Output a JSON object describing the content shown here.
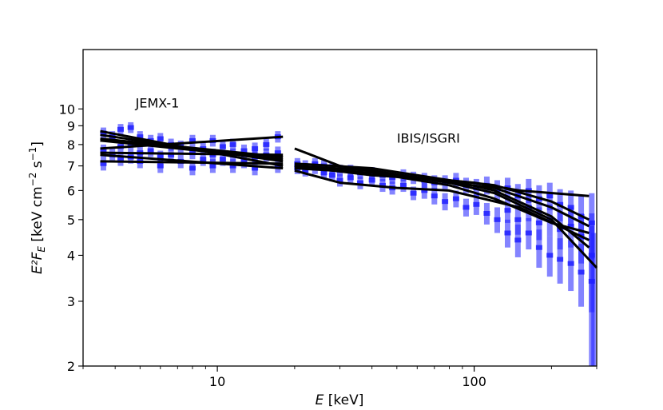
{
  "chart_data": {
    "type": "scatter",
    "xlabel_var": "E",
    "xlabel_unit": " [keV]",
    "ylabel_var": "E²F",
    "ylabel_sub": "E",
    "ylabel_unit_pre": " [keV cm",
    "ylabel_exp1": "−2",
    "ylabel_mid": " s",
    "ylabel_exp2": "−1",
    "ylabel_end": "]",
    "x_scale": "log",
    "y_scale": "log",
    "xlim": [
      3.0,
      300
    ],
    "ylim": [
      2.0,
      14.5
    ],
    "x_ticks": [
      {
        "value": 10,
        "label": "10"
      },
      {
        "value": 100,
        "label": "100"
      }
    ],
    "y_ticks": [
      {
        "value": 2,
        "label": "2"
      },
      {
        "value": 3,
        "label": "3"
      },
      {
        "value": 4,
        "label": "4"
      },
      {
        "value": 5,
        "label": "5"
      },
      {
        "value": 6,
        "label": "6"
      },
      {
        "value": 7,
        "label": "7"
      },
      {
        "value": 8,
        "label": "8"
      },
      {
        "value": 9,
        "label": "9"
      },
      {
        "value": 10,
        "label": "10"
      }
    ],
    "annotations": [
      {
        "text": "JEMX-1",
        "x": 4.8,
        "y": 10.1
      },
      {
        "text": "IBIS/ISGRI",
        "x": 50,
        "y": 8.1
      }
    ],
    "data_color": "#1f1fff",
    "model_color": "#000000",
    "model_lines": [
      {
        "x": [
          3.5,
          18
        ],
        "y": [
          8.7,
          7.0
        ]
      },
      {
        "x": [
          3.5,
          18
        ],
        "y": [
          8.5,
          7.2
        ]
      },
      {
        "x": [
          3.5,
          18
        ],
        "y": [
          8.3,
          7.4
        ]
      },
      {
        "x": [
          3.5,
          18
        ],
        "y": [
          8.2,
          7.3
        ]
      },
      {
        "x": [
          3.5,
          18
        ],
        "y": [
          7.8,
          8.4
        ]
      },
      {
        "x": [
          3.5,
          18
        ],
        "y": [
          7.6,
          7.5
        ]
      },
      {
        "x": [
          3.5,
          18
        ],
        "y": [
          7.2,
          7.1
        ]
      },
      {
        "x": [
          3.5,
          18
        ],
        "y": [
          7.5,
          6.9
        ]
      },
      {
        "x": [
          20,
          30,
          60,
          100,
          150,
          280
        ],
        "y": [
          7.8,
          7.0,
          6.5,
          6.3,
          6.0,
          5.8
        ]
      },
      {
        "x": [
          20,
          40,
          80,
          120,
          200,
          300
        ],
        "y": [
          7.0,
          6.8,
          6.3,
          5.9,
          5.0,
          3.7
        ]
      },
      {
        "x": [
          20,
          40,
          80,
          120,
          200,
          280
        ],
        "y": [
          7.1,
          6.9,
          6.4,
          6.0,
          5.1,
          4.2
        ]
      },
      {
        "x": [
          20,
          40,
          80,
          120,
          200,
          280
        ],
        "y": [
          6.9,
          6.7,
          6.2,
          5.7,
          4.9,
          4.6
        ]
      },
      {
        "x": [
          20,
          40,
          80,
          120,
          200,
          280
        ],
        "y": [
          7.0,
          6.8,
          6.3,
          6.1,
          5.4,
          4.8
        ]
      },
      {
        "x": [
          20,
          30,
          50,
          80,
          150,
          280
        ],
        "y": [
          6.8,
          6.3,
          6.1,
          6.0,
          5.4,
          4.4
        ]
      },
      {
        "x": [
          20,
          40,
          80,
          120,
          200,
          280
        ],
        "y": [
          7.0,
          6.6,
          6.4,
          6.2,
          5.6,
          5.0
        ]
      }
    ],
    "data_points": [
      {
        "x": 3.6,
        "y": 8.6,
        "e": 0.3
      },
      {
        "x": 3.6,
        "y": 7.7,
        "e": 0.3
      },
      {
        "x": 3.6,
        "y": 7.1,
        "e": 0.3
      },
      {
        "x": 3.9,
        "y": 8.4,
        "e": 0.3
      },
      {
        "x": 3.9,
        "y": 7.5,
        "e": 0.3
      },
      {
        "x": 4.2,
        "y": 8.8,
        "e": 0.3
      },
      {
        "x": 4.2,
        "y": 7.9,
        "e": 0.3
      },
      {
        "x": 4.2,
        "y": 7.3,
        "e": 0.3
      },
      {
        "x": 4.6,
        "y": 8.9,
        "e": 0.3
      },
      {
        "x": 4.6,
        "y": 8.0,
        "e": 0.3
      },
      {
        "x": 4.6,
        "y": 7.4,
        "e": 0.3
      },
      {
        "x": 5.0,
        "y": 8.4,
        "e": 0.3
      },
      {
        "x": 5.0,
        "y": 7.6,
        "e": 0.3
      },
      {
        "x": 5.0,
        "y": 7.2,
        "e": 0.3
      },
      {
        "x": 5.5,
        "y": 8.2,
        "e": 0.3
      },
      {
        "x": 5.5,
        "y": 7.7,
        "e": 0.3
      },
      {
        "x": 6.0,
        "y": 8.3,
        "e": 0.3
      },
      {
        "x": 6.0,
        "y": 7.4,
        "e": 0.3
      },
      {
        "x": 6.0,
        "y": 7.0,
        "e": 0.3
      },
      {
        "x": 6.6,
        "y": 8.0,
        "e": 0.3
      },
      {
        "x": 6.6,
        "y": 7.5,
        "e": 0.3
      },
      {
        "x": 7.2,
        "y": 7.9,
        "e": 0.3
      },
      {
        "x": 7.2,
        "y": 7.2,
        "e": 0.3
      },
      {
        "x": 8.0,
        "y": 8.2,
        "e": 0.3
      },
      {
        "x": 8.0,
        "y": 7.6,
        "e": 0.3
      },
      {
        "x": 8.0,
        "y": 6.9,
        "e": 0.3
      },
      {
        "x": 8.8,
        "y": 7.8,
        "e": 0.3
      },
      {
        "x": 8.8,
        "y": 7.3,
        "e": 0.3
      },
      {
        "x": 9.6,
        "y": 8.2,
        "e": 0.3
      },
      {
        "x": 9.6,
        "y": 7.5,
        "e": 0.3
      },
      {
        "x": 9.6,
        "y": 7.0,
        "e": 0.3
      },
      {
        "x": 10.5,
        "y": 7.9,
        "e": 0.3
      },
      {
        "x": 10.5,
        "y": 7.3,
        "e": 0.3
      },
      {
        "x": 11.5,
        "y": 8.0,
        "e": 0.3
      },
      {
        "x": 11.5,
        "y": 7.5,
        "e": 0.3
      },
      {
        "x": 11.5,
        "y": 7.0,
        "e": 0.3
      },
      {
        "x": 12.7,
        "y": 7.7,
        "e": 0.3
      },
      {
        "x": 12.7,
        "y": 7.2,
        "e": 0.3
      },
      {
        "x": 14.0,
        "y": 7.8,
        "e": 0.3
      },
      {
        "x": 14.0,
        "y": 7.4,
        "e": 0.3
      },
      {
        "x": 14.0,
        "y": 6.9,
        "e": 0.3
      },
      {
        "x": 15.5,
        "y": 8.0,
        "e": 0.3
      },
      {
        "x": 15.5,
        "y": 7.5,
        "e": 0.3
      },
      {
        "x": 17.2,
        "y": 8.4,
        "e": 0.3
      },
      {
        "x": 17.2,
        "y": 7.6,
        "e": 0.3
      },
      {
        "x": 17.2,
        "y": 7.0,
        "e": 0.3
      },
      {
        "x": 20.5,
        "y": 7.1,
        "e": 0.25
      },
      {
        "x": 20.5,
        "y": 6.9,
        "e": 0.25
      },
      {
        "x": 22,
        "y": 7.0,
        "e": 0.25
      },
      {
        "x": 22,
        "y": 6.8,
        "e": 0.25
      },
      {
        "x": 24,
        "y": 7.1,
        "e": 0.25
      },
      {
        "x": 24,
        "y": 6.9,
        "e": 0.25
      },
      {
        "x": 26,
        "y": 7.0,
        "e": 0.25
      },
      {
        "x": 26,
        "y": 6.7,
        "e": 0.25
      },
      {
        "x": 28,
        "y": 6.9,
        "e": 0.25
      },
      {
        "x": 28,
        "y": 6.6,
        "e": 0.25
      },
      {
        "x": 30,
        "y": 6.8,
        "e": 0.25
      },
      {
        "x": 30,
        "y": 6.4,
        "e": 0.25
      },
      {
        "x": 33,
        "y": 6.8,
        "e": 0.25
      },
      {
        "x": 33,
        "y": 6.5,
        "e": 0.25
      },
      {
        "x": 36,
        "y": 6.7,
        "e": 0.25
      },
      {
        "x": 36,
        "y": 6.3,
        "e": 0.25
      },
      {
        "x": 40,
        "y": 6.7,
        "e": 0.25
      },
      {
        "x": 40,
        "y": 6.4,
        "e": 0.25
      },
      {
        "x": 44,
        "y": 6.6,
        "e": 0.25
      },
      {
        "x": 44,
        "y": 6.2,
        "e": 0.25
      },
      {
        "x": 48,
        "y": 6.5,
        "e": 0.25
      },
      {
        "x": 48,
        "y": 6.1,
        "e": 0.25
      },
      {
        "x": 53,
        "y": 6.6,
        "e": 0.25
      },
      {
        "x": 53,
        "y": 6.2,
        "e": 0.25
      },
      {
        "x": 58,
        "y": 6.5,
        "e": 0.25
      },
      {
        "x": 58,
        "y": 5.9,
        "e": 0.25
      },
      {
        "x": 64,
        "y": 6.4,
        "e": 0.3
      },
      {
        "x": 64,
        "y": 6.0,
        "e": 0.3
      },
      {
        "x": 70,
        "y": 6.3,
        "e": 0.3
      },
      {
        "x": 70,
        "y": 5.8,
        "e": 0.3
      },
      {
        "x": 77,
        "y": 6.3,
        "e": 0.3
      },
      {
        "x": 77,
        "y": 5.6,
        "e": 0.3
      },
      {
        "x": 85,
        "y": 6.4,
        "e": 0.3
      },
      {
        "x": 85,
        "y": 5.7,
        "e": 0.3
      },
      {
        "x": 93,
        "y": 6.2,
        "e": 0.3
      },
      {
        "x": 93,
        "y": 5.4,
        "e": 0.3
      },
      {
        "x": 102,
        "y": 6.1,
        "e": 0.35
      },
      {
        "x": 102,
        "y": 5.5,
        "e": 0.35
      },
      {
        "x": 112,
        "y": 6.2,
        "e": 0.35
      },
      {
        "x": 112,
        "y": 5.2,
        "e": 0.35
      },
      {
        "x": 123,
        "y": 6.0,
        "e": 0.4
      },
      {
        "x": 123,
        "y": 5.0,
        "e": 0.4
      },
      {
        "x": 135,
        "y": 6.1,
        "e": 0.4
      },
      {
        "x": 135,
        "y": 5.3,
        "e": 0.4
      },
      {
        "x": 135,
        "y": 4.6,
        "e": 0.4
      },
      {
        "x": 148,
        "y": 5.8,
        "e": 0.45
      },
      {
        "x": 148,
        "y": 5.0,
        "e": 0.45
      },
      {
        "x": 148,
        "y": 4.4,
        "e": 0.45
      },
      {
        "x": 163,
        "y": 6.0,
        "e": 0.45
      },
      {
        "x": 163,
        "y": 5.4,
        "e": 0.45
      },
      {
        "x": 163,
        "y": 4.6,
        "e": 0.45
      },
      {
        "x": 179,
        "y": 5.7,
        "e": 0.5
      },
      {
        "x": 179,
        "y": 4.9,
        "e": 0.5
      },
      {
        "x": 179,
        "y": 4.2,
        "e": 0.5
      },
      {
        "x": 197,
        "y": 5.8,
        "e": 0.5
      },
      {
        "x": 197,
        "y": 5.0,
        "e": 0.5
      },
      {
        "x": 197,
        "y": 4.0,
        "e": 0.5
      },
      {
        "x": 216,
        "y": 5.5,
        "e": 0.55
      },
      {
        "x": 216,
        "y": 4.7,
        "e": 0.55
      },
      {
        "x": 216,
        "y": 3.9,
        "e": 0.55
      },
      {
        "x": 238,
        "y": 5.4,
        "e": 0.6
      },
      {
        "x": 238,
        "y": 4.8,
        "e": 0.6
      },
      {
        "x": 238,
        "y": 3.8,
        "e": 0.6
      },
      {
        "x": 261,
        "y": 5.1,
        "e": 0.7
      },
      {
        "x": 261,
        "y": 4.5,
        "e": 0.7
      },
      {
        "x": 261,
        "y": 3.6,
        "e": 0.7
      },
      {
        "x": 287,
        "y": 4.9,
        "e": 1.0
      },
      {
        "x": 287,
        "y": 4.0,
        "e": 1.2
      },
      {
        "x": 287,
        "y": 3.4,
        "e": 1.4
      }
    ]
  }
}
